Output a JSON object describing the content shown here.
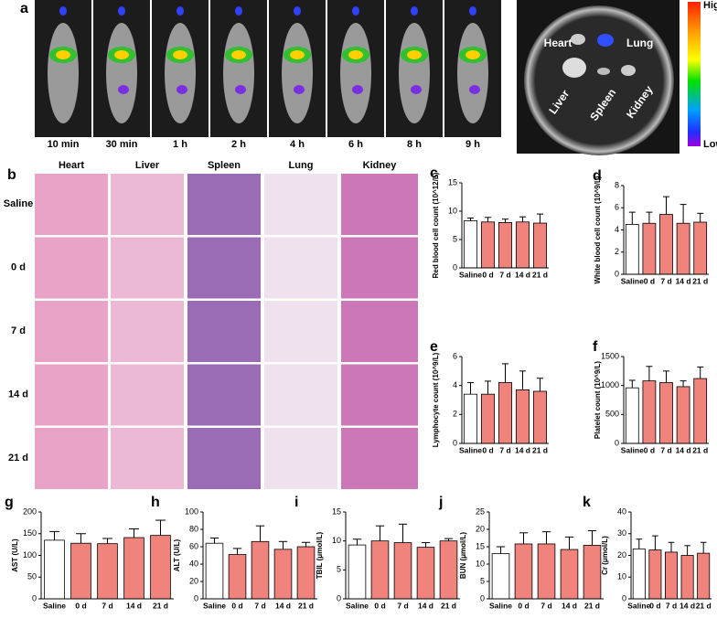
{
  "panel_a": {
    "label": "a",
    "times": [
      "10 min",
      "30 min",
      "1 h",
      "2 h",
      "4 h",
      "6 h",
      "8 h",
      "9 h"
    ],
    "organs": [
      "Heart",
      "Lung",
      "Liver",
      "Spleen",
      "Kidney"
    ],
    "colorbar": {
      "high": "High",
      "low": "Low"
    }
  },
  "panel_b": {
    "label": "b",
    "columns": [
      "Heart",
      "Liver",
      "Spleen",
      "Lung",
      "Kidney"
    ],
    "rows": [
      "Saline",
      "0 d",
      "7 d",
      "14 d",
      "21 d"
    ]
  },
  "chart_data": [
    {
      "type": "bar",
      "panel": "c",
      "ylabel": "Red blood cell count (10^12/L)",
      "categories": [
        "Saline",
        "0 d",
        "7 d",
        "14 d",
        "21 d"
      ],
      "values": [
        8.3,
        8.1,
        8.0,
        8.1,
        7.9
      ],
      "errors": [
        0.5,
        0.8,
        0.6,
        0.9,
        1.6
      ],
      "colors": [
        "#ffffff",
        "#f0837c",
        "#f0837c",
        "#f0837c",
        "#f0837c"
      ],
      "ylim": [
        0,
        15
      ],
      "yticks": [
        0,
        5,
        10,
        15
      ]
    },
    {
      "type": "bar",
      "panel": "d",
      "ylabel": "White blood cell count (10^9/L)",
      "categories": [
        "Saline",
        "0 d",
        "7 d",
        "14 d",
        "21 d"
      ],
      "values": [
        4.5,
        4.6,
        5.4,
        4.6,
        4.7
      ],
      "errors": [
        1.1,
        1.0,
        1.6,
        1.7,
        0.8
      ],
      "colors": [
        "#ffffff",
        "#f0837c",
        "#f0837c",
        "#f0837c",
        "#f0837c"
      ],
      "ylim": [
        0,
        8
      ],
      "yticks": [
        0,
        2,
        4,
        6,
        8
      ]
    },
    {
      "type": "bar",
      "panel": "e",
      "ylabel": "Lymphocyte count (10^9/L)",
      "categories": [
        "Saline",
        "0 d",
        "7 d",
        "14 d",
        "21 d"
      ],
      "values": [
        3.4,
        3.4,
        4.2,
        3.7,
        3.6
      ],
      "errors": [
        0.8,
        0.9,
        1.3,
        1.3,
        0.9
      ],
      "colors": [
        "#ffffff",
        "#f0837c",
        "#f0837c",
        "#f0837c",
        "#f0837c"
      ],
      "ylim": [
        0,
        6
      ],
      "yticks": [
        0,
        2,
        4,
        6
      ]
    },
    {
      "type": "bar",
      "panel": "f",
      "ylabel": "Platelet count (10^9/L)",
      "categories": [
        "Saline",
        "0 d",
        "7 d",
        "14 d",
        "21 d"
      ],
      "values": [
        960,
        1080,
        1050,
        980,
        1120
      ],
      "errors": [
        130,
        250,
        200,
        100,
        200
      ],
      "colors": [
        "#ffffff",
        "#f0837c",
        "#f0837c",
        "#f0837c",
        "#f0837c"
      ],
      "ylim": [
        0,
        1500
      ],
      "yticks": [
        0,
        500,
        1000,
        1500
      ]
    },
    {
      "type": "bar",
      "panel": "g",
      "ylabel": "AST (U/L)",
      "categories": [
        "Saline",
        "0 d",
        "7 d",
        "14 d",
        "21 d"
      ],
      "values": [
        135,
        128,
        127,
        141,
        146
      ],
      "errors": [
        20,
        22,
        12,
        20,
        35
      ],
      "colors": [
        "#ffffff",
        "#f0837c",
        "#f0837c",
        "#f0837c",
        "#f0837c"
      ],
      "ylim": [
        0,
        200
      ],
      "yticks": [
        0,
        50,
        100,
        150,
        200
      ]
    },
    {
      "type": "bar",
      "panel": "h",
      "ylabel": "ALT (U/L)",
      "categories": [
        "Saline",
        "0 d",
        "7 d",
        "14 d",
        "21 d"
      ],
      "values": [
        64,
        51,
        66,
        57,
        60
      ],
      "errors": [
        6,
        7,
        18,
        9,
        5
      ],
      "colors": [
        "#ffffff",
        "#f0837c",
        "#f0837c",
        "#f0837c",
        "#f0837c"
      ],
      "ylim": [
        0,
        100
      ],
      "yticks": [
        0,
        20,
        40,
        60,
        80,
        100
      ]
    },
    {
      "type": "bar",
      "panel": "i",
      "ylabel": "TBIL (μmol/L)",
      "categories": [
        "Saline",
        "0 d",
        "7 d",
        "14 d",
        "21 d"
      ],
      "values": [
        9.3,
        10,
        9.7,
        8.9,
        10
      ],
      "errors": [
        1,
        2.6,
        3.2,
        0.8,
        0.4
      ],
      "colors": [
        "#ffffff",
        "#f0837c",
        "#f0837c",
        "#f0837c",
        "#f0837c"
      ],
      "ylim": [
        0,
        15
      ],
      "yticks": [
        0,
        5,
        10,
        15
      ]
    },
    {
      "type": "bar",
      "panel": "j",
      "ylabel": "BUN (μmol/L)",
      "categories": [
        "Saline",
        "0 d",
        "7 d",
        "14 d",
        "21 d"
      ],
      "values": [
        13,
        15.8,
        15.8,
        14.2,
        15.4
      ],
      "errors": [
        2,
        3.2,
        3.5,
        3.6,
        4.2
      ],
      "colors": [
        "#ffffff",
        "#f0837c",
        "#f0837c",
        "#f0837c",
        "#f0837c"
      ],
      "ylim": [
        0,
        25
      ],
      "yticks": [
        0,
        5,
        10,
        15,
        20,
        25
      ]
    },
    {
      "type": "bar",
      "panel": "k",
      "ylabel": "Cr (μmol/L)",
      "categories": [
        "Saline",
        "0 d",
        "7 d",
        "14 d",
        "21 d"
      ],
      "values": [
        23,
        22.5,
        21.5,
        20,
        21
      ],
      "errors": [
        4.5,
        6.5,
        4.5,
        4.5,
        5
      ],
      "colors": [
        "#ffffff",
        "#f0837c",
        "#f0837c",
        "#f0837c",
        "#f0837c"
      ],
      "ylim": [
        0,
        40
      ],
      "yticks": [
        0,
        10,
        20,
        30,
        40
      ]
    }
  ]
}
